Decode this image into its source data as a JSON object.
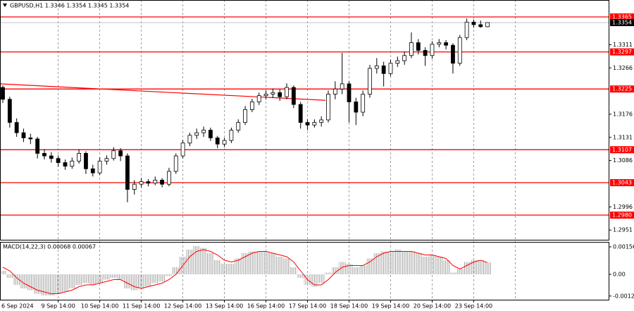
{
  "chart_data": {
    "type": "candlestick",
    "title": "GBPUSD,H1  1.3346 1.3354 1.3345 1.3354",
    "categories": [
      "6 Sep 2024",
      null,
      null,
      null,
      null,
      null,
      null,
      null,
      "9 Sep 14:00",
      null,
      null,
      null,
      null,
      null,
      "10 Sep 14:00",
      null,
      null,
      null,
      null,
      null,
      "11 Sep 14:00",
      null,
      null,
      null,
      null,
      null,
      "12 Sep 14:00",
      null,
      null,
      null,
      null,
      null,
      "13 Sep 14:00",
      null,
      null,
      null,
      null,
      null,
      "16 Sep 14:00",
      null,
      null,
      null,
      null,
      null,
      "17 Sep 14:00",
      null,
      null,
      null,
      null,
      null,
      "18 Sep 14:00",
      null,
      null,
      null,
      null,
      null,
      "19 Sep 14:00",
      null,
      null,
      null,
      null,
      null,
      "20 Sep 14:00",
      null,
      null,
      null,
      null,
      null,
      "23 Sep 14:00",
      null,
      null
    ],
    "ohlc": [
      [
        1.3228,
        1.3232,
        1.3198,
        1.3205
      ],
      [
        1.3205,
        1.321,
        1.315,
        1.316
      ],
      [
        1.316,
        1.3168,
        1.3132,
        1.314
      ],
      [
        1.314,
        1.3148,
        1.3122,
        1.313
      ],
      [
        1.313,
        1.3138,
        1.3118,
        1.3128
      ],
      [
        1.3128,
        1.3132,
        1.309,
        1.31
      ],
      [
        1.31,
        1.3108,
        1.3088,
        1.3095
      ],
      [
        1.3095,
        1.3102,
        1.3082,
        1.309
      ],
      [
        1.309,
        1.3096,
        1.3074,
        1.3082
      ],
      [
        1.3082,
        1.3088,
        1.3068,
        1.3075
      ],
      [
        1.3075,
        1.3092,
        1.307,
        1.3085
      ],
      [
        1.3085,
        1.3108,
        1.308,
        1.31
      ],
      [
        1.31,
        1.3104,
        1.306,
        1.307
      ],
      [
        1.307,
        1.3078,
        1.3055,
        1.3062
      ],
      [
        1.3062,
        1.3092,
        1.3058,
        1.3085
      ],
      [
        1.3085,
        1.3096,
        1.3078,
        1.309
      ],
      [
        1.309,
        1.3112,
        1.3086,
        1.3105
      ],
      [
        1.3105,
        1.311,
        1.3085,
        1.3095
      ],
      [
        1.3095,
        1.31,
        1.3005,
        1.303
      ],
      [
        1.303,
        1.3048,
        1.302,
        1.304
      ],
      [
        1.304,
        1.3052,
        1.3034,
        1.3045
      ],
      [
        1.3045,
        1.305,
        1.3036,
        1.3042
      ],
      [
        1.3042,
        1.3055,
        1.3038,
        1.3048
      ],
      [
        1.3048,
        1.3052,
        1.3034,
        1.304
      ],
      [
        1.304,
        1.3072,
        1.3036,
        1.3065
      ],
      [
        1.3065,
        1.31,
        1.306,
        1.3095
      ],
      [
        1.3095,
        1.3126,
        1.309,
        1.312
      ],
      [
        1.312,
        1.314,
        1.3114,
        1.3135
      ],
      [
        1.3135,
        1.3148,
        1.3128,
        1.314
      ],
      [
        1.314,
        1.3152,
        1.3132,
        1.3145
      ],
      [
        1.3145,
        1.315,
        1.3124,
        1.313
      ],
      [
        1.313,
        1.3134,
        1.311,
        1.3118
      ],
      [
        1.3118,
        1.313,
        1.3112,
        1.3125
      ],
      [
        1.3125,
        1.315,
        1.312,
        1.3145
      ],
      [
        1.3145,
        1.3166,
        1.314,
        1.316
      ],
      [
        1.316,
        1.3192,
        1.3155,
        1.3185
      ],
      [
        1.3185,
        1.3206,
        1.318,
        1.32
      ],
      [
        1.32,
        1.3218,
        1.3194,
        1.3212
      ],
      [
        1.3212,
        1.3222,
        1.3205,
        1.3215
      ],
      [
        1.3215,
        1.3226,
        1.3208,
        1.3218
      ],
      [
        1.3218,
        1.3224,
        1.3202,
        1.321
      ],
      [
        1.321,
        1.3236,
        1.3205,
        1.3228
      ],
      [
        1.3228,
        1.3232,
        1.3188,
        1.3195
      ],
      [
        1.3195,
        1.32,
        1.3148,
        1.316
      ],
      [
        1.316,
        1.3166,
        1.3145,
        1.3155
      ],
      [
        1.3155,
        1.3166,
        1.315,
        1.316
      ],
      [
        1.316,
        1.3172,
        1.3152,
        1.3165
      ],
      [
        1.3165,
        1.3222,
        1.316,
        1.3215
      ],
      [
        1.3215,
        1.324,
        1.3205,
        1.3225
      ],
      [
        1.3225,
        1.3295,
        1.3215,
        1.3235
      ],
      [
        1.3235,
        1.324,
        1.316,
        1.32
      ],
      [
        1.32,
        1.3208,
        1.3155,
        1.318
      ],
      [
        1.318,
        1.3222,
        1.3172,
        1.3215
      ],
      [
        1.3215,
        1.3272,
        1.3208,
        1.3265
      ],
      [
        1.3265,
        1.3285,
        1.3255,
        1.327
      ],
      [
        1.327,
        1.3278,
        1.323,
        1.3255
      ],
      [
        1.3255,
        1.3282,
        1.325,
        1.3275
      ],
      [
        1.3275,
        1.3288,
        1.3268,
        1.328
      ],
      [
        1.328,
        1.3298,
        1.3272,
        1.329
      ],
      [
        1.329,
        1.3335,
        1.3285,
        1.3315
      ],
      [
        1.3315,
        1.3322,
        1.3292,
        1.33
      ],
      [
        1.33,
        1.3306,
        1.327,
        1.329
      ],
      [
        1.329,
        1.3318,
        1.3284,
        1.3312
      ],
      [
        1.3312,
        1.3322,
        1.3306,
        1.3315
      ],
      [
        1.3315,
        1.332,
        1.3302,
        1.331
      ],
      [
        1.331,
        1.3314,
        1.3255,
        1.3275
      ],
      [
        1.3275,
        1.333,
        1.327,
        1.3325
      ],
      [
        1.3325,
        1.3362,
        1.332,
        1.3355
      ],
      [
        1.3355,
        1.336,
        1.3344,
        1.335
      ],
      [
        1.335,
        1.3358,
        1.3344,
        1.3346
      ],
      [
        1.3346,
        1.3354,
        1.3345,
        1.3354
      ]
    ],
    "ylim": [
      1.29307,
      1.33979
    ],
    "yticks": [
      1.3311,
      1.3266,
      1.3176,
      1.3131,
      1.3086,
      1.2996,
      1.2951
    ],
    "levels": [
      1.3365,
      1.3297,
      1.3225,
      1.3107,
      1.3043,
      {
        "value": 1.298,
        "label": "1.2980"
      }
    ],
    "last_price": 1.3354,
    "trendline": [
      1.3235,
      1.3203
    ],
    "macd": {
      "title": "MACD(14,22,3) 0.00068 0.00067",
      "ylim": [
        -0.00144,
        0.00184
      ],
      "yticks": [
        0.00156,
        {
          "value": 0,
          "label": "0.00"
        },
        -0.00123
      ],
      "histogram": [
        0.0002,
        -0.0002,
        -0.0006,
        -0.0008,
        -0.0009,
        -0.0011,
        -0.0012,
        -0.0012,
        -0.0011,
        -0.001,
        -0.0008,
        -0.0006,
        -0.0005,
        -0.0006,
        -0.0005,
        -0.0003,
        -0.0002,
        -0.0003,
        -0.0008,
        -0.0009,
        -0.0008,
        -0.0007,
        -0.0005,
        -0.0004,
        -0.0001,
        0.0004,
        0.001,
        0.0014,
        0.0016,
        0.0015,
        0.0012,
        0.0008,
        0.0006,
        0.0006,
        0.0009,
        0.0012,
        0.0013,
        0.0013,
        0.0013,
        0.0012,
        0.001,
        0.0009,
        0.0004,
        -0.0002,
        -0.0006,
        -0.0007,
        -0.0005,
        0.0001,
        0.0004,
        0.0007,
        0.0006,
        0.0004,
        0.0005,
        0.0009,
        0.0012,
        0.0013,
        0.0013,
        0.0014,
        0.0013,
        0.0013,
        0.0012,
        0.001,
        0.0011,
        0.001,
        0.0008,
        0.0001,
        0.0003,
        0.0007,
        0.0008,
        0.0008,
        0.00068
      ],
      "signal": [
        0.0004,
        0.0002,
        -0.0002,
        -0.0005,
        -0.0007,
        -0.0009,
        -0.001,
        -0.0011,
        -0.0011,
        -0.001,
        -0.0009,
        -0.0007,
        -0.0006,
        -0.0006,
        -0.0005,
        -0.0004,
        -0.0003,
        -0.0003,
        -0.0005,
        -0.0007,
        -0.0008,
        -0.0007,
        -0.0006,
        -0.0005,
        -0.0003,
        0.0,
        0.0005,
        0.001,
        0.0013,
        0.0014,
        0.0013,
        0.0011,
        0.0008,
        0.0007,
        0.0008,
        0.001,
        0.0012,
        0.0013,
        0.0013,
        0.0012,
        0.0011,
        0.001,
        0.0007,
        0.0002,
        -0.0003,
        -0.0006,
        -0.0006,
        -0.0003,
        0.0001,
        0.0004,
        0.0005,
        0.0005,
        0.0005,
        0.0007,
        0.001,
        0.0012,
        0.0013,
        0.0013,
        0.0013,
        0.0013,
        0.0012,
        0.0011,
        0.0011,
        0.001,
        0.0009,
        0.0005,
        0.0003,
        0.0005,
        0.0007,
        0.0008,
        0.00067
      ],
      "signal_color": "#ff0000"
    },
    "level_color": "#ff0000"
  }
}
